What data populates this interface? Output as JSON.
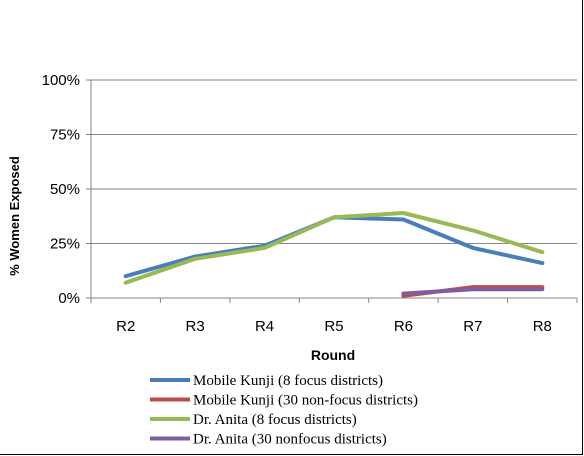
{
  "chart_data": {
    "type": "line",
    "title": "",
    "xlabel": "Round",
    "ylabel": "% Women Exposed",
    "categories": [
      "R2",
      "R3",
      "R4",
      "R5",
      "R6",
      "R7",
      "R8"
    ],
    "y_ticks": [
      "0%",
      "25%",
      "50%",
      "75%",
      "100%"
    ],
    "ylim": [
      0,
      100
    ],
    "grid": true,
    "legend_position": "bottom",
    "series": [
      {
        "name": "Mobile Kunji (8 focus districts)",
        "color": "#4a7ebb",
        "values": [
          10,
          19,
          24,
          37,
          36,
          23,
          16
        ]
      },
      {
        "name": "Mobile Kunji (30 non-focus districts)",
        "color": "#be4b48",
        "values": [
          null,
          null,
          null,
          null,
          1,
          5,
          5
        ]
      },
      {
        "name": "Dr. Anita (8 focus districts)",
        "color": "#98b954",
        "values": [
          7,
          18,
          23,
          37,
          39,
          31,
          21
        ]
      },
      {
        "name": "Dr. Anita (30 nonfocus districts)",
        "color": "#7d5fa0",
        "values": [
          null,
          null,
          null,
          null,
          2,
          4,
          4
        ]
      }
    ]
  }
}
